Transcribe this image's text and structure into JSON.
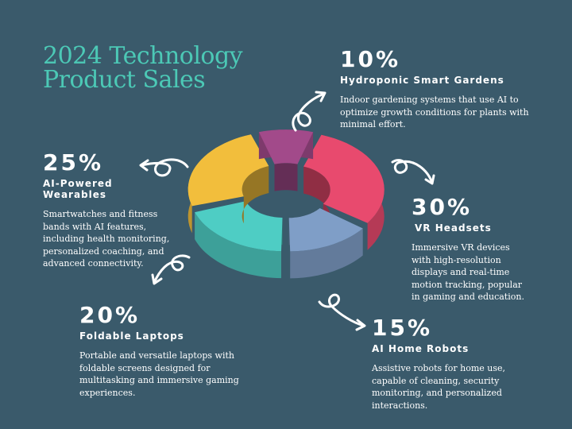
{
  "title": {
    "line1": "2024 Technology",
    "line2": "Product Sales"
  },
  "chart_data": {
    "type": "pie",
    "style": "3d-donut",
    "slices": [
      {
        "name": "VR Headsets",
        "percent_label": "30%",
        "value": 30,
        "color": "#e84a6e",
        "description": "Immersive VR devices with high-resolution displays and real-time motion tracking, popular in gaming and education."
      },
      {
        "name": "AI Home Robots",
        "percent_label": "15%",
        "value": 15,
        "color": "#7f9ec7",
        "description": "Assistive robots for home use, capable of cleaning, security monitoring, and personalized interactions."
      },
      {
        "name": "Foldable Laptops",
        "percent_label": "20%",
        "value": 20,
        "color": "#4ecdc4",
        "description": "Portable and versatile laptops with foldable screens designed for multitasking and immersive gaming experiences."
      },
      {
        "name": "AI-Powered Wearables",
        "percent_label": "25%",
        "value": 25,
        "color": "#f2be3c",
        "description": "Smartwatches and fitness bands with AI features, including health monitoring, personalized coaching, and advanced connectivity."
      },
      {
        "name": "Hydroponic Smart Gardens",
        "percent_label": "10%",
        "value": 10,
        "color": "#a24a8a",
        "description": "Indoor gardening systems that use AI to optimize growth conditions for plants with minimal effort."
      }
    ]
  }
}
